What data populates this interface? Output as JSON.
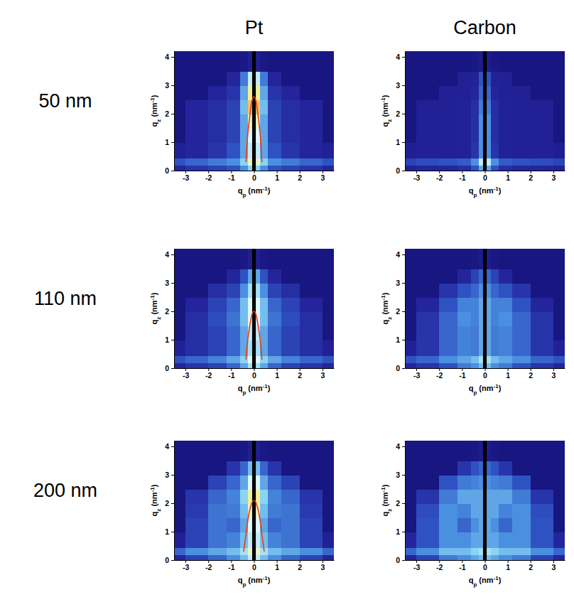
{
  "column_titles": [
    "Pt",
    "Carbon"
  ],
  "row_labels": [
    "50 nm",
    "110 nm",
    "200 nm"
  ],
  "chart_data": [
    {
      "type": "heatmap",
      "xlim": [
        -3.5,
        3.5
      ],
      "ylim": [
        0,
        4.2
      ],
      "xticks": [
        -3,
        -2,
        -1,
        0,
        1,
        2,
        3
      ],
      "yticks": [
        0,
        1,
        2,
        3,
        4
      ],
      "xlabel": [
        "q",
        "p",
        " (nm",
        "-1",
        ")"
      ],
      "ylabel": [
        "q",
        "z",
        " (nm",
        "-1",
        ")"
      ],
      "zlim": [
        0,
        1
      ],
      "x_edges": [
        -3.5,
        -3,
        -2,
        -1.2,
        -0.6,
        -0.25,
        0,
        0.25,
        0.6,
        1.2,
        2,
        3,
        3.5
      ],
      "y_edges": [
        0,
        0.2,
        0.45,
        1,
        1.5,
        2,
        2.5,
        3,
        3.5,
        4.2
      ],
      "cells": [
        [
          0.15,
          0.2,
          0.25,
          0.3,
          0.45,
          0.6,
          0.6,
          0.45,
          0.3,
          0.25,
          0.2,
          0.15
        ],
        [
          0.3,
          0.35,
          0.4,
          0.45,
          0.6,
          0.8,
          0.8,
          0.6,
          0.45,
          0.4,
          0.35,
          0.3
        ],
        [
          0.12,
          0.15,
          0.2,
          0.3,
          0.5,
          0.7,
          0.7,
          0.5,
          0.3,
          0.2,
          0.15,
          0.12
        ],
        [
          0.03,
          0.15,
          0.18,
          0.25,
          0.5,
          0.75,
          0.75,
          0.5,
          0.25,
          0.18,
          0.15,
          0.03
        ],
        [
          0.03,
          0.15,
          0.18,
          0.25,
          0.5,
          0.8,
          0.8,
          0.5,
          0.25,
          0.18,
          0.15,
          0.03
        ],
        [
          0.03,
          0.15,
          0.18,
          0.25,
          0.55,
          0.9,
          0.9,
          0.55,
          0.25,
          0.18,
          0.15,
          0.03
        ],
        [
          0.03,
          0.03,
          0.15,
          0.2,
          0.5,
          0.85,
          0.85,
          0.5,
          0.2,
          0.15,
          0.03,
          0.03
        ],
        [
          0.03,
          0.03,
          0.03,
          0.15,
          0.4,
          0.7,
          0.7,
          0.4,
          0.15,
          0.03,
          0.03,
          0.03
        ],
        [
          0.03,
          0.03,
          0.03,
          0.03,
          0.05,
          0.1,
          0.1,
          0.05,
          0.03,
          0.03,
          0.03,
          0.03
        ]
      ],
      "beamstop": [
        -0.08,
        0.08
      ],
      "series": [
        {
          "type": "line",
          "color": "#ee3a0c",
          "x": [
            -0.35,
            -0.3,
            -0.2,
            -0.1,
            0,
            0.1,
            0.2,
            0.3,
            0.35
          ],
          "values": [
            0.3,
            1.0,
            1.8,
            2.4,
            2.6,
            2.4,
            1.8,
            1.0,
            0.3
          ]
        }
      ]
    },
    {
      "type": "heatmap",
      "xlim": [
        -3.5,
        3.5
      ],
      "ylim": [
        0,
        4.2
      ],
      "xticks": [
        -3,
        -2,
        -1,
        0,
        1,
        2,
        3
      ],
      "yticks": [
        0,
        1,
        2,
        3,
        4
      ],
      "xlabel": [
        "q",
        "p",
        " (nm",
        "-1",
        ")"
      ],
      "ylabel": [
        "q",
        "z",
        " (nm",
        "-1",
        ")"
      ],
      "zlim": [
        0,
        1
      ],
      "x_edges": [
        -3.5,
        -3,
        -2,
        -1.2,
        -0.6,
        -0.25,
        0,
        0.25,
        0.6,
        1.2,
        2,
        3,
        3.5
      ],
      "y_edges": [
        0,
        0.2,
        0.45,
        1,
        1.5,
        2,
        2.5,
        3,
        3.5,
        4.2
      ],
      "cells": [
        [
          0.12,
          0.15,
          0.15,
          0.18,
          0.3,
          0.5,
          0.5,
          0.3,
          0.18,
          0.15,
          0.15,
          0.12
        ],
        [
          0.25,
          0.28,
          0.3,
          0.32,
          0.45,
          0.7,
          0.7,
          0.45,
          0.32,
          0.3,
          0.28,
          0.25
        ],
        [
          0.1,
          0.12,
          0.12,
          0.13,
          0.2,
          0.45,
          0.45,
          0.2,
          0.13,
          0.12,
          0.12,
          0.1
        ],
        [
          0.03,
          0.12,
          0.12,
          0.13,
          0.18,
          0.45,
          0.45,
          0.18,
          0.13,
          0.12,
          0.12,
          0.03
        ],
        [
          0.03,
          0.12,
          0.12,
          0.13,
          0.18,
          0.45,
          0.45,
          0.18,
          0.13,
          0.12,
          0.12,
          0.03
        ],
        [
          0.03,
          0.12,
          0.12,
          0.13,
          0.18,
          0.4,
          0.4,
          0.18,
          0.13,
          0.12,
          0.12,
          0.03
        ],
        [
          0.03,
          0.03,
          0.12,
          0.12,
          0.15,
          0.35,
          0.35,
          0.15,
          0.12,
          0.12,
          0.03,
          0.03
        ],
        [
          0.03,
          0.03,
          0.03,
          0.12,
          0.13,
          0.3,
          0.3,
          0.13,
          0.12,
          0.03,
          0.03,
          0.03
        ],
        [
          0.03,
          0.03,
          0.03,
          0.03,
          0.05,
          0.08,
          0.08,
          0.05,
          0.03,
          0.03,
          0.03,
          0.03
        ]
      ],
      "beamstop": [
        -0.08,
        0.08
      ]
    },
    {
      "type": "heatmap",
      "xlim": [
        -3.5,
        3.5
      ],
      "ylim": [
        0,
        4.2
      ],
      "xticks": [
        -3,
        -2,
        -1,
        0,
        1,
        2,
        3
      ],
      "yticks": [
        0,
        1,
        2,
        3,
        4
      ],
      "xlabel": [
        "q",
        "p",
        " (nm",
        "-1",
        ")"
      ],
      "ylabel": [
        "q",
        "z",
        " (nm",
        "-1",
        ")"
      ],
      "zlim": [
        0,
        1
      ],
      "x_edges": [
        -3.5,
        -3,
        -2,
        -1.2,
        -0.6,
        -0.25,
        0,
        0.25,
        0.6,
        1.2,
        2,
        3,
        3.5
      ],
      "y_edges": [
        0,
        0.2,
        0.45,
        1,
        1.5,
        2,
        2.5,
        3,
        3.5,
        4.2
      ],
      "cells": [
        [
          0.15,
          0.2,
          0.25,
          0.35,
          0.5,
          0.65,
          0.65,
          0.5,
          0.35,
          0.25,
          0.2,
          0.15
        ],
        [
          0.3,
          0.35,
          0.42,
          0.5,
          0.6,
          0.75,
          0.75,
          0.6,
          0.5,
          0.42,
          0.35,
          0.3
        ],
        [
          0.12,
          0.18,
          0.25,
          0.35,
          0.5,
          0.65,
          0.65,
          0.5,
          0.35,
          0.25,
          0.18,
          0.12
        ],
        [
          0.03,
          0.18,
          0.25,
          0.35,
          0.5,
          0.7,
          0.7,
          0.5,
          0.35,
          0.25,
          0.18,
          0.03
        ],
        [
          0.03,
          0.18,
          0.28,
          0.38,
          0.55,
          0.75,
          0.75,
          0.55,
          0.38,
          0.28,
          0.18,
          0.03
        ],
        [
          0.03,
          0.15,
          0.25,
          0.35,
          0.55,
          0.75,
          0.75,
          0.55,
          0.35,
          0.25,
          0.15,
          0.03
        ],
        [
          0.03,
          0.03,
          0.18,
          0.25,
          0.45,
          0.65,
          0.65,
          0.45,
          0.25,
          0.18,
          0.03,
          0.03
        ],
        [
          0.03,
          0.03,
          0.03,
          0.15,
          0.3,
          0.5,
          0.5,
          0.3,
          0.15,
          0.03,
          0.03,
          0.03
        ],
        [
          0.03,
          0.03,
          0.03,
          0.03,
          0.05,
          0.1,
          0.1,
          0.05,
          0.03,
          0.03,
          0.03,
          0.03
        ]
      ],
      "beamstop": [
        -0.08,
        0.08
      ],
      "series": [
        {
          "type": "line",
          "color": "#ee3a0c",
          "x": [
            -0.35,
            -0.3,
            -0.2,
            -0.1,
            0,
            0.1,
            0.2,
            0.3,
            0.35
          ],
          "values": [
            0.3,
            0.8,
            1.4,
            1.85,
            2.0,
            1.85,
            1.4,
            0.8,
            0.3
          ]
        }
      ]
    },
    {
      "type": "heatmap",
      "xlim": [
        -3.5,
        3.5
      ],
      "ylim": [
        0,
        4.2
      ],
      "xticks": [
        -3,
        -2,
        -1,
        0,
        1,
        2,
        3
      ],
      "yticks": [
        0,
        1,
        2,
        3,
        4
      ],
      "xlabel": [
        "q",
        "p",
        " (nm",
        "-1",
        ")"
      ],
      "ylabel": [
        "q",
        "z",
        " (nm",
        "-1",
        ")"
      ],
      "zlim": [
        0,
        1
      ],
      "x_edges": [
        -3.5,
        -3,
        -2,
        -1.2,
        -0.6,
        -0.25,
        0,
        0.25,
        0.6,
        1.2,
        2,
        3,
        3.5
      ],
      "y_edges": [
        0,
        0.2,
        0.45,
        1,
        1.5,
        2,
        2.5,
        3,
        3.5,
        4.2
      ],
      "cells": [
        [
          0.15,
          0.2,
          0.3,
          0.4,
          0.45,
          0.55,
          0.55,
          0.45,
          0.4,
          0.3,
          0.2,
          0.15
        ],
        [
          0.3,
          0.35,
          0.45,
          0.5,
          0.55,
          0.65,
          0.65,
          0.55,
          0.5,
          0.45,
          0.35,
          0.3
        ],
        [
          0.12,
          0.2,
          0.35,
          0.42,
          0.4,
          0.5,
          0.5,
          0.4,
          0.42,
          0.35,
          0.2,
          0.12
        ],
        [
          0.03,
          0.2,
          0.35,
          0.42,
          0.4,
          0.5,
          0.5,
          0.4,
          0.42,
          0.35,
          0.2,
          0.03
        ],
        [
          0.03,
          0.2,
          0.35,
          0.45,
          0.42,
          0.5,
          0.5,
          0.42,
          0.45,
          0.35,
          0.2,
          0.03
        ],
        [
          0.03,
          0.15,
          0.3,
          0.42,
          0.42,
          0.5,
          0.5,
          0.42,
          0.42,
          0.3,
          0.15,
          0.03
        ],
        [
          0.03,
          0.03,
          0.2,
          0.3,
          0.35,
          0.45,
          0.45,
          0.35,
          0.3,
          0.2,
          0.03,
          0.03
        ],
        [
          0.03,
          0.03,
          0.03,
          0.15,
          0.25,
          0.35,
          0.35,
          0.25,
          0.15,
          0.03,
          0.03,
          0.03
        ],
        [
          0.03,
          0.03,
          0.03,
          0.03,
          0.05,
          0.08,
          0.08,
          0.05,
          0.03,
          0.03,
          0.03,
          0.03
        ]
      ],
      "beamstop": [
        -0.08,
        0.08
      ]
    },
    {
      "type": "heatmap",
      "xlim": [
        -3.5,
        3.5
      ],
      "ylim": [
        0,
        4.2
      ],
      "xticks": [
        -3,
        -2,
        -1,
        0,
        1,
        2,
        3
      ],
      "yticks": [
        0,
        1,
        2,
        3,
        4
      ],
      "xlabel": [
        "q",
        "p",
        " (nm",
        "-1",
        ")"
      ],
      "ylabel": [
        "q",
        "z",
        " (nm",
        "-1",
        ")"
      ],
      "zlim": [
        0,
        1
      ],
      "x_edges": [
        -3.5,
        -3,
        -2,
        -1.2,
        -0.6,
        -0.25,
        0,
        0.25,
        0.6,
        1.2,
        2,
        3,
        3.5
      ],
      "y_edges": [
        0,
        0.2,
        0.45,
        1,
        1.5,
        2,
        2.5,
        3,
        3.5,
        4.2
      ],
      "cells": [
        [
          0.15,
          0.25,
          0.35,
          0.45,
          0.55,
          0.7,
          0.7,
          0.55,
          0.45,
          0.35,
          0.25,
          0.15
        ],
        [
          0.35,
          0.45,
          0.5,
          0.55,
          0.65,
          0.8,
          0.8,
          0.65,
          0.55,
          0.5,
          0.45,
          0.35
        ],
        [
          0.12,
          0.25,
          0.38,
          0.42,
          0.55,
          0.7,
          0.7,
          0.55,
          0.42,
          0.38,
          0.25,
          0.12
        ],
        [
          0.03,
          0.25,
          0.38,
          0.35,
          0.5,
          0.75,
          0.75,
          0.5,
          0.35,
          0.38,
          0.25,
          0.03
        ],
        [
          0.03,
          0.22,
          0.38,
          0.4,
          0.55,
          0.8,
          0.8,
          0.55,
          0.4,
          0.38,
          0.22,
          0.03
        ],
        [
          0.03,
          0.2,
          0.35,
          0.42,
          0.6,
          0.85,
          0.85,
          0.6,
          0.42,
          0.35,
          0.2,
          0.03
        ],
        [
          0.03,
          0.03,
          0.25,
          0.35,
          0.5,
          0.75,
          0.75,
          0.5,
          0.35,
          0.25,
          0.03,
          0.03
        ],
        [
          0.03,
          0.03,
          0.03,
          0.2,
          0.35,
          0.55,
          0.55,
          0.35,
          0.2,
          0.03,
          0.03,
          0.03
        ],
        [
          0.03,
          0.03,
          0.03,
          0.03,
          0.05,
          0.1,
          0.1,
          0.05,
          0.03,
          0.03,
          0.03,
          0.03
        ]
      ],
      "beamstop": [
        -0.08,
        0.08
      ],
      "series": [
        {
          "type": "line",
          "color": "#ee3a0c",
          "x": [
            -0.45,
            -0.35,
            -0.25,
            -0.12,
            0,
            0.12,
            0.25,
            0.35,
            0.45
          ],
          "values": [
            0.3,
            0.9,
            1.5,
            1.95,
            2.1,
            1.95,
            1.5,
            0.9,
            0.3
          ]
        }
      ]
    },
    {
      "type": "heatmap",
      "xlim": [
        -3.5,
        3.5
      ],
      "ylim": [
        0,
        4.2
      ],
      "xticks": [
        -3,
        -2,
        -1,
        0,
        1,
        2,
        3
      ],
      "yticks": [
        0,
        1,
        2,
        3,
        4
      ],
      "xlabel": [
        "q",
        "p",
        " (nm",
        "-1",
        ")"
      ],
      "ylabel": [
        "q",
        "z",
        " (nm",
        "-1",
        ")"
      ],
      "zlim": [
        0,
        1
      ],
      "x_edges": [
        -3.5,
        -3,
        -2,
        -1.2,
        -0.6,
        -0.25,
        0,
        0.25,
        0.6,
        1.2,
        2,
        3,
        3.5
      ],
      "y_edges": [
        0,
        0.2,
        0.45,
        1,
        1.5,
        2,
        2.5,
        3,
        3.5,
        4.2
      ],
      "cells": [
        [
          0.15,
          0.25,
          0.4,
          0.45,
          0.5,
          0.55,
          0.55,
          0.5,
          0.45,
          0.4,
          0.25,
          0.15
        ],
        [
          0.35,
          0.45,
          0.55,
          0.55,
          0.6,
          0.65,
          0.65,
          0.6,
          0.55,
          0.55,
          0.45,
          0.35
        ],
        [
          0.15,
          0.3,
          0.45,
          0.45,
          0.5,
          0.5,
          0.5,
          0.5,
          0.45,
          0.45,
          0.3,
          0.15
        ],
        [
          0.03,
          0.3,
          0.45,
          0.35,
          0.45,
          0.5,
          0.5,
          0.45,
          0.35,
          0.45,
          0.3,
          0.03
        ],
        [
          0.03,
          0.28,
          0.45,
          0.42,
          0.5,
          0.5,
          0.5,
          0.5,
          0.42,
          0.45,
          0.28,
          0.03
        ],
        [
          0.03,
          0.2,
          0.4,
          0.5,
          0.5,
          0.5,
          0.5,
          0.5,
          0.5,
          0.4,
          0.2,
          0.03
        ],
        [
          0.03,
          0.03,
          0.3,
          0.4,
          0.42,
          0.45,
          0.45,
          0.42,
          0.4,
          0.3,
          0.03,
          0.03
        ],
        [
          0.03,
          0.03,
          0.03,
          0.2,
          0.3,
          0.35,
          0.35,
          0.3,
          0.2,
          0.03,
          0.03,
          0.03
        ],
        [
          0.03,
          0.03,
          0.03,
          0.03,
          0.05,
          0.08,
          0.08,
          0.05,
          0.03,
          0.03,
          0.03,
          0.03
        ]
      ],
      "beamstop": [
        -0.08,
        0.08
      ]
    }
  ]
}
